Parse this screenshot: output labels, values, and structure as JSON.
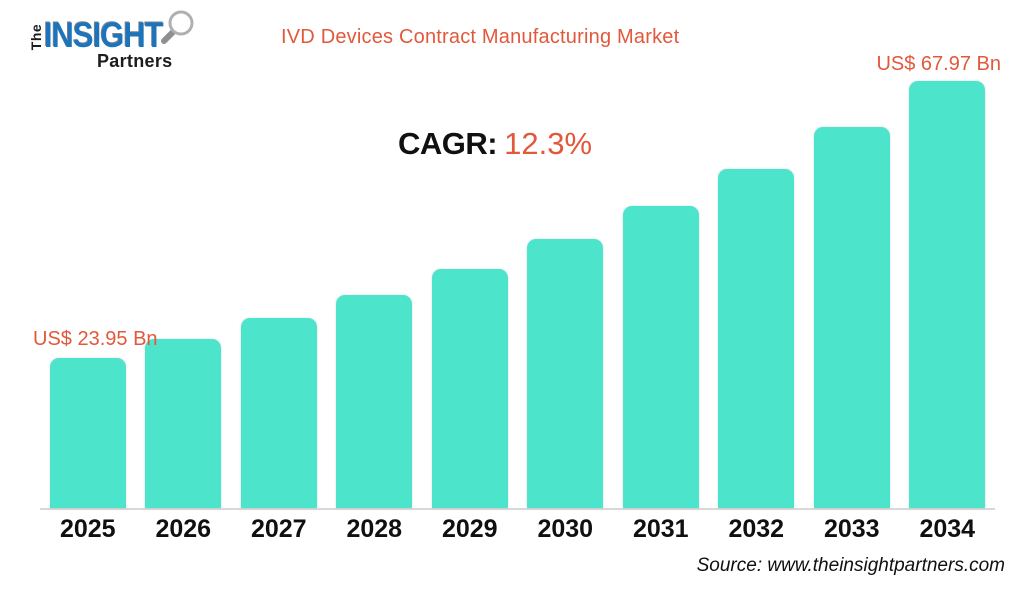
{
  "logo": {
    "the": "The",
    "insight": "INSIGHT",
    "partners": "Partners"
  },
  "header": {
    "title": "IVD Devices Contract Manufacturing Market"
  },
  "cagr": {
    "label": "CAGR:",
    "value": "12.3%"
  },
  "annotations": {
    "first_bar": "US$ 23.95 Bn",
    "last_bar": "US$ 67.97 Bn"
  },
  "footer": {
    "source": "Source: www.theinsightpartners.com"
  },
  "colors": {
    "accent_orange": "#E2583B",
    "bar_teal": "#4DE4CC",
    "logo_blue": "#1C75BC",
    "axis_line": "#D8D8D8",
    "text_black": "#101010"
  },
  "chart_data": {
    "type": "bar",
    "title": "IVD Devices Contract Manufacturing Market",
    "categories": [
      "2025",
      "2026",
      "2027",
      "2028",
      "2029",
      "2030",
      "2031",
      "2032",
      "2033",
      "2034"
    ],
    "values": [
      23.95,
      26.9,
      30.2,
      33.92,
      38.09,
      42.78,
      48.04,
      53.94,
      60.58,
      67.97
    ],
    "unit": "US$ Bn",
    "cagr_percent": 12.3,
    "first_point_label": "US$ 23.95 Bn",
    "last_point_label": "US$ 67.97 Bn",
    "ylim": [
      0,
      70
    ],
    "grid": false,
    "legend": "none",
    "bar_color": "#4DE4CC"
  }
}
